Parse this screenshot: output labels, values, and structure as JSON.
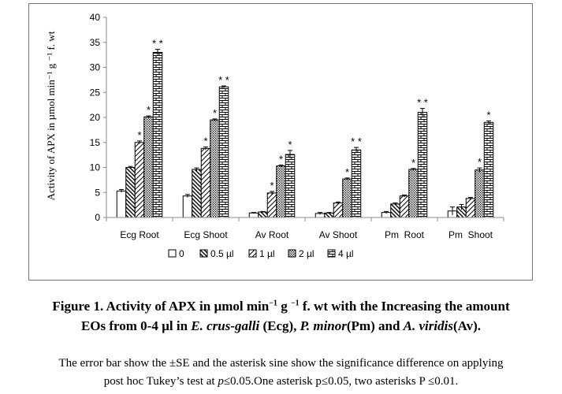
{
  "chart_data": {
    "type": "bar",
    "categories": [
      "Ecg Root",
      "Ecg Shoot",
      "Av Root",
      "Av Shoot",
      "Pm  Root",
      "Pm  Shoot"
    ],
    "series": [
      {
        "name": "0",
        "pattern": "solid",
        "values": [
          5.3,
          4.3,
          0.9,
          0.8,
          1.0,
          1.3
        ],
        "errors": [
          0.3,
          0.3,
          0.1,
          0.2,
          0.2,
          0.8
        ]
      },
      {
        "name": "0.5 µl",
        "pattern": "diag-down",
        "values": [
          10.0,
          9.6,
          1.1,
          0.9,
          2.7,
          2.1
        ],
        "errors": [
          0.2,
          0.3,
          0.1,
          0.1,
          0.2,
          0.5
        ]
      },
      {
        "name": "1 µl",
        "pattern": "diag-up",
        "values": [
          15.0,
          13.8,
          4.9,
          2.9,
          4.3,
          3.8
        ],
        "errors": [
          0.3,
          0.3,
          0.3,
          0.2,
          0.2,
          0.2
        ]
      },
      {
        "name": "2 µl",
        "pattern": "dots",
        "values": [
          20.1,
          19.5,
          10.3,
          7.7,
          9.6,
          9.5
        ],
        "errors": [
          0.2,
          0.2,
          0.2,
          0.2,
          0.2,
          0.4
        ]
      },
      {
        "name": "4 µl",
        "pattern": "bricks",
        "values": [
          33.0,
          26.1,
          12.6,
          13.5,
          21.0,
          19.0
        ],
        "errors": [
          0.6,
          0.2,
          0.8,
          0.5,
          0.8,
          0.3
        ]
      }
    ],
    "stars": [
      [
        "",
        "",
        "*",
        "*",
        "**"
      ],
      [
        "",
        "",
        "*",
        "*",
        "**"
      ],
      [
        "",
        "",
        "*",
        "*",
        "*"
      ],
      [
        "",
        "",
        "",
        "*",
        "**"
      ],
      [
        "",
        "",
        "",
        "*",
        "**"
      ],
      [
        "",
        "",
        "",
        "*",
        "*"
      ]
    ],
    "ylabel": "Activity  of APX in µmol min⁻¹  g ⁻¹ f. wt",
    "ylim": [
      0,
      40
    ],
    "yticks": [
      0,
      5,
      10,
      15,
      20,
      25,
      30,
      35,
      40
    ],
    "legend_position": "bottom",
    "grid": false
  },
  "caption": {
    "line1_a": "Figure 1. Activity of APX in µmol min",
    "line1_sup1": "−1",
    "line1_b": "  g ",
    "line1_sup2": "−1",
    "line1_c": " f. wt with the Increasing the amount",
    "line2_a": "EOs from 0-4 µl in ",
    "line2_ecg_name": "E. crus-galli",
    "line2_ecg_abbr": " (Ecg), ",
    "line2_pm_name": "P. minor",
    "line2_pm_abbr": "(Pm) and  ",
    "line2_av_name": "A. viridis",
    "line2_av_abbr": "(Av)."
  },
  "note": {
    "line1": "The error bar show the ±SE and the asterisk sine show the significance difference on applying",
    "line2_a": "post hoc Tukey’s test at ",
    "line2_p": "p",
    "line2_b": "≤0.05.One asterisk p≤0.05, two asterisks P ≤0.01."
  }
}
